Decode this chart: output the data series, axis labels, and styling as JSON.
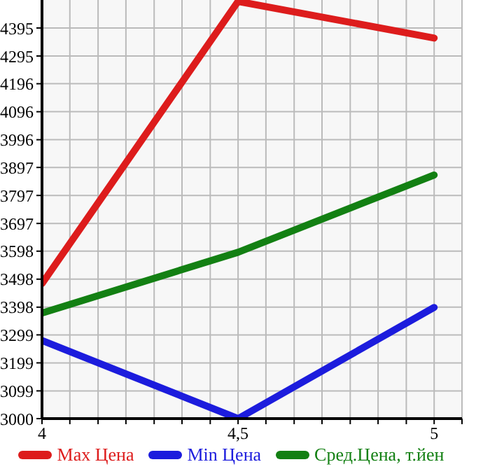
{
  "chart_data": {
    "type": "line",
    "x": [
      4,
      4.5,
      5
    ],
    "series": [
      {
        "name": "Max Цена",
        "color": "#dd1c1c",
        "values": [
          3482,
          4490,
          4359
        ]
      },
      {
        "name": "Min Цена",
        "color": "#1c1cdd",
        "values": [
          3279,
          3000,
          3397
        ]
      },
      {
        "name": "Сред.Цена, т.йен",
        "color": "#138013",
        "values": [
          3377,
          3594,
          3870
        ]
      }
    ],
    "xlim": [
      4,
      5.071
    ],
    "xticks": [
      4,
      {
        "value": 4.071,
        "label": null
      },
      {
        "value": 4.143,
        "label": null
      },
      {
        "value": 4.214,
        "label": null
      },
      {
        "value": 4.286,
        "label": null
      },
      {
        "value": 4.357,
        "label": null
      },
      {
        "value": 4.429,
        "label": null
      },
      {
        "value": 4.5,
        "label": "4,5"
      },
      {
        "value": 4.571,
        "label": null
      },
      {
        "value": 4.643,
        "label": null
      },
      {
        "value": 4.714,
        "label": null
      },
      {
        "value": 4.786,
        "label": null
      },
      {
        "value": 4.857,
        "label": null
      },
      {
        "value": 4.929,
        "label": null
      },
      5,
      {
        "value": 5.071,
        "label": null
      }
    ],
    "ylim": [
      3000,
      4495
    ],
    "yticks": [
      3000,
      3099,
      3199,
      3299,
      3398,
      3498,
      3598,
      3697,
      3797,
      3897,
      3996,
      4096,
      4196,
      4295,
      4395
    ],
    "grid": true,
    "legend": "bottom",
    "marker": "none",
    "line_style": "solid"
  }
}
